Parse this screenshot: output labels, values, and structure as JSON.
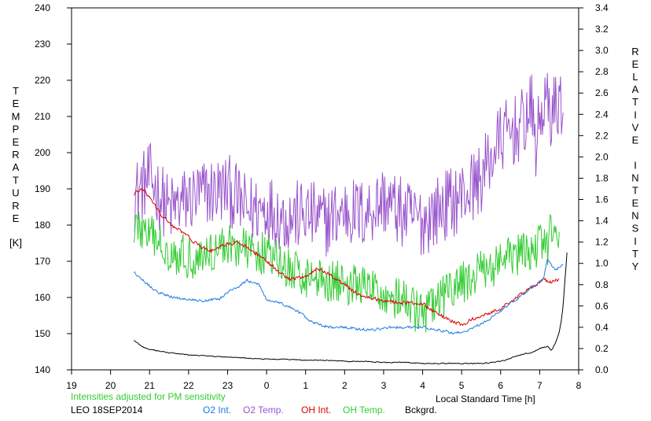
{
  "chart_data": {
    "type": "line",
    "title": "",
    "xlabel": "Local Standard Time [h]",
    "ylabel_left": "TEMPERATURE [K]",
    "ylabel_left_letters": [
      "T",
      "E",
      "M",
      "P",
      "E",
      "R",
      "A",
      "T",
      "U",
      "R",
      "E"
    ],
    "ylabel_left_unit": "[K]",
    "ylabel_right": "RELATIVE INTENSITY",
    "ylabel_right_letters": [
      "R",
      "E",
      "L",
      "A",
      "T",
      "I",
      "V",
      "E",
      "",
      "I",
      "N",
      "T",
      "E",
      "N",
      "S",
      "I",
      "T",
      "Y"
    ],
    "x_tick_labels": [
      "19",
      "20",
      "21",
      "22",
      "23",
      "0",
      "1",
      "2",
      "3",
      "4",
      "5",
      "6",
      "7",
      "8"
    ],
    "xlim": [
      19,
      32
    ],
    "ylim_left": [
      140,
      240
    ],
    "y_left_ticks": [
      140,
      150,
      160,
      170,
      180,
      190,
      200,
      210,
      220,
      230,
      240
    ],
    "ylim_right": [
      0,
      3.4
    ],
    "y_right_ticks": [
      "0.0",
      "0.2",
      "0.4",
      "0.6",
      "0.8",
      "1.0",
      "1.2",
      "1.4",
      "1.6",
      "1.8",
      "2.0",
      "2.2",
      "2.4",
      "2.6",
      "2.8",
      "3.0",
      "3.2",
      "3.4"
    ],
    "grid": false,
    "note": "Intensities adjusted for PM sensitivity",
    "station": "LEO 18SEP2014",
    "legend": [
      {
        "name": "O2 Int.",
        "color": "#1e7be6"
      },
      {
        "name": "O2 Temp.",
        "color": "#9955cc"
      },
      {
        "name": "OH Int.",
        "color": "#dd0000"
      },
      {
        "name": "OH Temp.",
        "color": "#33cc33"
      },
      {
        "name": "Bckgrd.",
        "color": "#000000"
      }
    ],
    "series": [
      {
        "key": "o2temp",
        "axis": "left",
        "color": "#9955cc",
        "noise": 10,
        "x": [
          20.6,
          21.0,
          21.5,
          22.0,
          22.5,
          23.0,
          23.5,
          24.0,
          24.5,
          25.0,
          25.5,
          26.0,
          26.5,
          27.0,
          27.5,
          28.0,
          28.5,
          29.0,
          29.5,
          30.0,
          30.5,
          30.8,
          30.9,
          31.1,
          31.3,
          31.6
        ],
        "y": [
          188,
          193,
          184,
          187,
          189,
          190,
          184,
          185,
          182,
          183,
          181,
          184,
          183,
          187,
          183,
          181,
          185,
          188,
          193,
          204,
          207,
          212,
          202,
          214,
          211,
          215
        ]
      },
      {
        "key": "ohtemp",
        "axis": "left",
        "color": "#33cc33",
        "noise": 6,
        "x": [
          20.6,
          21.0,
          21.5,
          22.0,
          22.5,
          23.0,
          23.5,
          24.0,
          24.5,
          25.0,
          25.5,
          26.0,
          26.5,
          27.0,
          27.5,
          28.0,
          28.5,
          29.0,
          29.5,
          30.0,
          30.5,
          30.8,
          31.0,
          31.2,
          31.3,
          31.5
        ],
        "y": [
          180,
          177,
          173,
          171,
          172,
          175,
          173,
          172,
          168,
          166,
          165,
          164,
          163,
          161,
          159,
          155,
          160,
          164,
          167,
          170,
          172,
          172,
          176,
          173,
          180,
          173
        ]
      },
      {
        "key": "ohint",
        "axis": "right",
        "color": "#dd0000",
        "noise": 0.025,
        "x": [
          20.6,
          20.8,
          21.0,
          21.3,
          21.6,
          22.0,
          22.3,
          22.6,
          23.0,
          23.3,
          23.6,
          24.0,
          24.3,
          24.6,
          25.0,
          25.3,
          25.6,
          26.0,
          26.3,
          26.6,
          27.0,
          27.3,
          27.6,
          28.0,
          28.3,
          28.6,
          29.0,
          29.3,
          29.6,
          30.0,
          30.3,
          30.5,
          30.7,
          30.9,
          31.1,
          31.3,
          31.5
        ],
        "y": [
          1.65,
          1.7,
          1.62,
          1.45,
          1.35,
          1.25,
          1.15,
          1.12,
          1.18,
          1.2,
          1.12,
          1.02,
          0.92,
          0.85,
          0.88,
          0.95,
          0.9,
          0.8,
          0.72,
          0.68,
          0.65,
          0.64,
          0.63,
          0.62,
          0.55,
          0.48,
          0.42,
          0.48,
          0.52,
          0.58,
          0.65,
          0.7,
          0.76,
          0.8,
          0.85,
          0.82,
          0.85
        ]
      },
      {
        "key": "o2int",
        "axis": "right",
        "color": "#1e7be6",
        "noise": 0.018,
        "x": [
          20.6,
          20.9,
          21.2,
          21.6,
          22.0,
          22.4,
          22.8,
          23.0,
          23.3,
          23.5,
          23.8,
          24.0,
          24.4,
          24.8,
          25.2,
          25.6,
          26.0,
          26.4,
          26.8,
          27.2,
          27.6,
          28.0,
          28.4,
          28.8,
          29.2,
          29.6,
          30.0,
          30.3,
          30.6,
          30.9,
          31.1,
          31.2,
          31.4,
          31.6
        ],
        "y": [
          0.92,
          0.82,
          0.73,
          0.68,
          0.66,
          0.65,
          0.67,
          0.73,
          0.79,
          0.84,
          0.8,
          0.66,
          0.62,
          0.55,
          0.44,
          0.4,
          0.4,
          0.38,
          0.38,
          0.4,
          0.4,
          0.4,
          0.38,
          0.34,
          0.38,
          0.45,
          0.55,
          0.64,
          0.72,
          0.8,
          0.86,
          1.05,
          0.93,
          1.0
        ]
      },
      {
        "key": "bckgrd",
        "axis": "right",
        "color": "#000000",
        "noise": 0.006,
        "x": [
          20.6,
          20.8,
          21.0,
          21.5,
          22.0,
          22.5,
          23.0,
          23.5,
          24.0,
          24.5,
          25.0,
          25.5,
          26.0,
          26.5,
          27.0,
          27.5,
          28.0,
          28.5,
          29.0,
          29.5,
          29.8,
          30.0,
          30.2,
          30.4,
          30.6,
          30.8,
          31.0,
          31.2,
          31.3,
          31.4,
          31.45,
          31.5,
          31.55,
          31.6,
          31.65,
          31.7
        ],
        "y": [
          0.28,
          0.22,
          0.19,
          0.16,
          0.14,
          0.13,
          0.12,
          0.11,
          0.1,
          0.1,
          0.09,
          0.09,
          0.08,
          0.08,
          0.07,
          0.07,
          0.06,
          0.06,
          0.06,
          0.06,
          0.07,
          0.08,
          0.1,
          0.13,
          0.15,
          0.16,
          0.2,
          0.22,
          0.18,
          0.25,
          0.3,
          0.35,
          0.45,
          0.6,
          0.85,
          1.1
        ]
      }
    ]
  }
}
